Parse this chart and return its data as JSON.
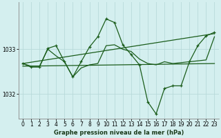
{
  "title": "Graphe pression niveau de la mer (hPa)",
  "background_color": "#d4efef",
  "grid_color": "#b8dada",
  "line_color": "#1a5c1a",
  "xlim": [
    -0.5,
    23.5
  ],
  "ylim": [
    1031.45,
    1034.05
  ],
  "yticks": [
    1032,
    1033
  ],
  "xticks": [
    0,
    1,
    2,
    3,
    4,
    5,
    6,
    7,
    8,
    9,
    10,
    11,
    12,
    13,
    14,
    15,
    16,
    17,
    18,
    19,
    20,
    21,
    22,
    23
  ],
  "series": [
    {
      "x": [
        0,
        23
      ],
      "y": [
        1032.68,
        1033.35
      ],
      "marker": false,
      "lw": 0.9
    },
    {
      "x": [
        0,
        23
      ],
      "y": [
        1032.62,
        1032.68
      ],
      "marker": false,
      "lw": 0.9
    },
    {
      "x": [
        0,
        1,
        2,
        3,
        4,
        5,
        6,
        7,
        8,
        9,
        10,
        11,
        12,
        13,
        14,
        15,
        16,
        17,
        18,
        19,
        20,
        21,
        22,
        23
      ],
      "y": [
        1032.68,
        1032.62,
        1032.62,
        1033.0,
        1032.85,
        1032.72,
        1032.38,
        1032.58,
        1032.65,
        1032.68,
        1033.08,
        1033.1,
        1033.0,
        1032.95,
        1032.78,
        1032.68,
        1032.65,
        1032.72,
        1032.68,
        1032.7,
        1032.72,
        1032.74,
        1032.76,
        1033.28
      ],
      "marker": false,
      "lw": 0.9
    },
    {
      "x": [
        0,
        1,
        2,
        3,
        4,
        5,
        6,
        7,
        8,
        9,
        10,
        11,
        12,
        13,
        14,
        15,
        16,
        17,
        18,
        19,
        20,
        21,
        22,
        23
      ],
      "y": [
        1032.68,
        1032.6,
        1032.6,
        1033.02,
        1033.08,
        1032.72,
        1032.38,
        1032.72,
        1033.05,
        1033.28,
        1033.68,
        1033.6,
        1033.1,
        1032.88,
        1032.65,
        1031.82,
        1031.55,
        1032.12,
        1032.18,
        1032.18,
        1032.72,
        1033.08,
        1033.3,
        1033.38
      ],
      "marker": true,
      "lw": 0.9
    }
  ]
}
